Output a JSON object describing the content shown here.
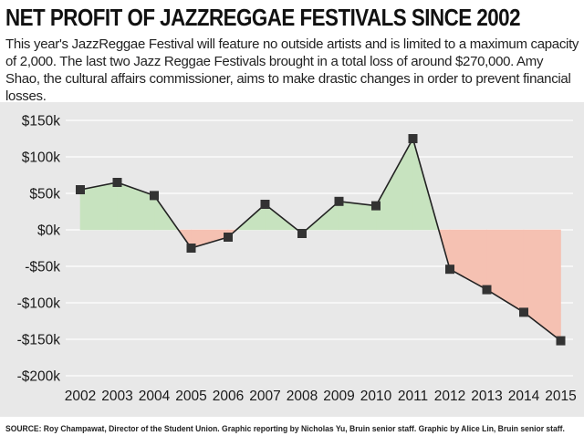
{
  "title": "NET PROFIT OF JAZZREGGAE FESTIVALS SINCE 2002",
  "subtitle": "This year's JazzReggae Festival will feature no outside artists and is limited to a maximum capacity of 2,000. The last two Jazz Reggae Festivals brought in a total loss of around $270,000. Amy Shao, the cultural affairs commissioner, aims to make drastic changes in order to prevent financial losses.",
  "source": "SOURCE: Roy Champawat, Director of the Student Union.  Graphic reporting by Nicholas Yu, Bruin senior staff. Graphic by Alice Lin, Bruin senior staff.",
  "colors": {
    "positive_fill": "#c7e3bf",
    "negative_fill": "#f5c1b2",
    "line": "#222222",
    "marker": "#333333",
    "panel_bg": "#e8e8e8",
    "grid": "#ffffff"
  },
  "chart_data": {
    "type": "area",
    "x": [
      "2002",
      "2003",
      "2004",
      "2005",
      "2006",
      "2007",
      "2008",
      "2009",
      "2010",
      "2011",
      "2012",
      "2013",
      "2014",
      "2015"
    ],
    "y": [
      55000,
      65000,
      47000,
      -25000,
      -10000,
      35000,
      -5000,
      39000,
      33000,
      125000,
      -54000,
      -82000,
      -113000,
      -152000
    ],
    "ylim": [
      -200000,
      150000
    ],
    "yticks": [
      150000,
      100000,
      50000,
      0,
      -50000,
      -100000,
      -150000,
      -200000
    ],
    "ytick_labels": [
      "$150k",
      "$100k",
      "$50k",
      "$0k",
      "-$50k",
      "-$100k",
      "-$150k",
      "-$200k"
    ],
    "xlabel": "",
    "ylabel": "",
    "grid": true,
    "marker": "square"
  }
}
